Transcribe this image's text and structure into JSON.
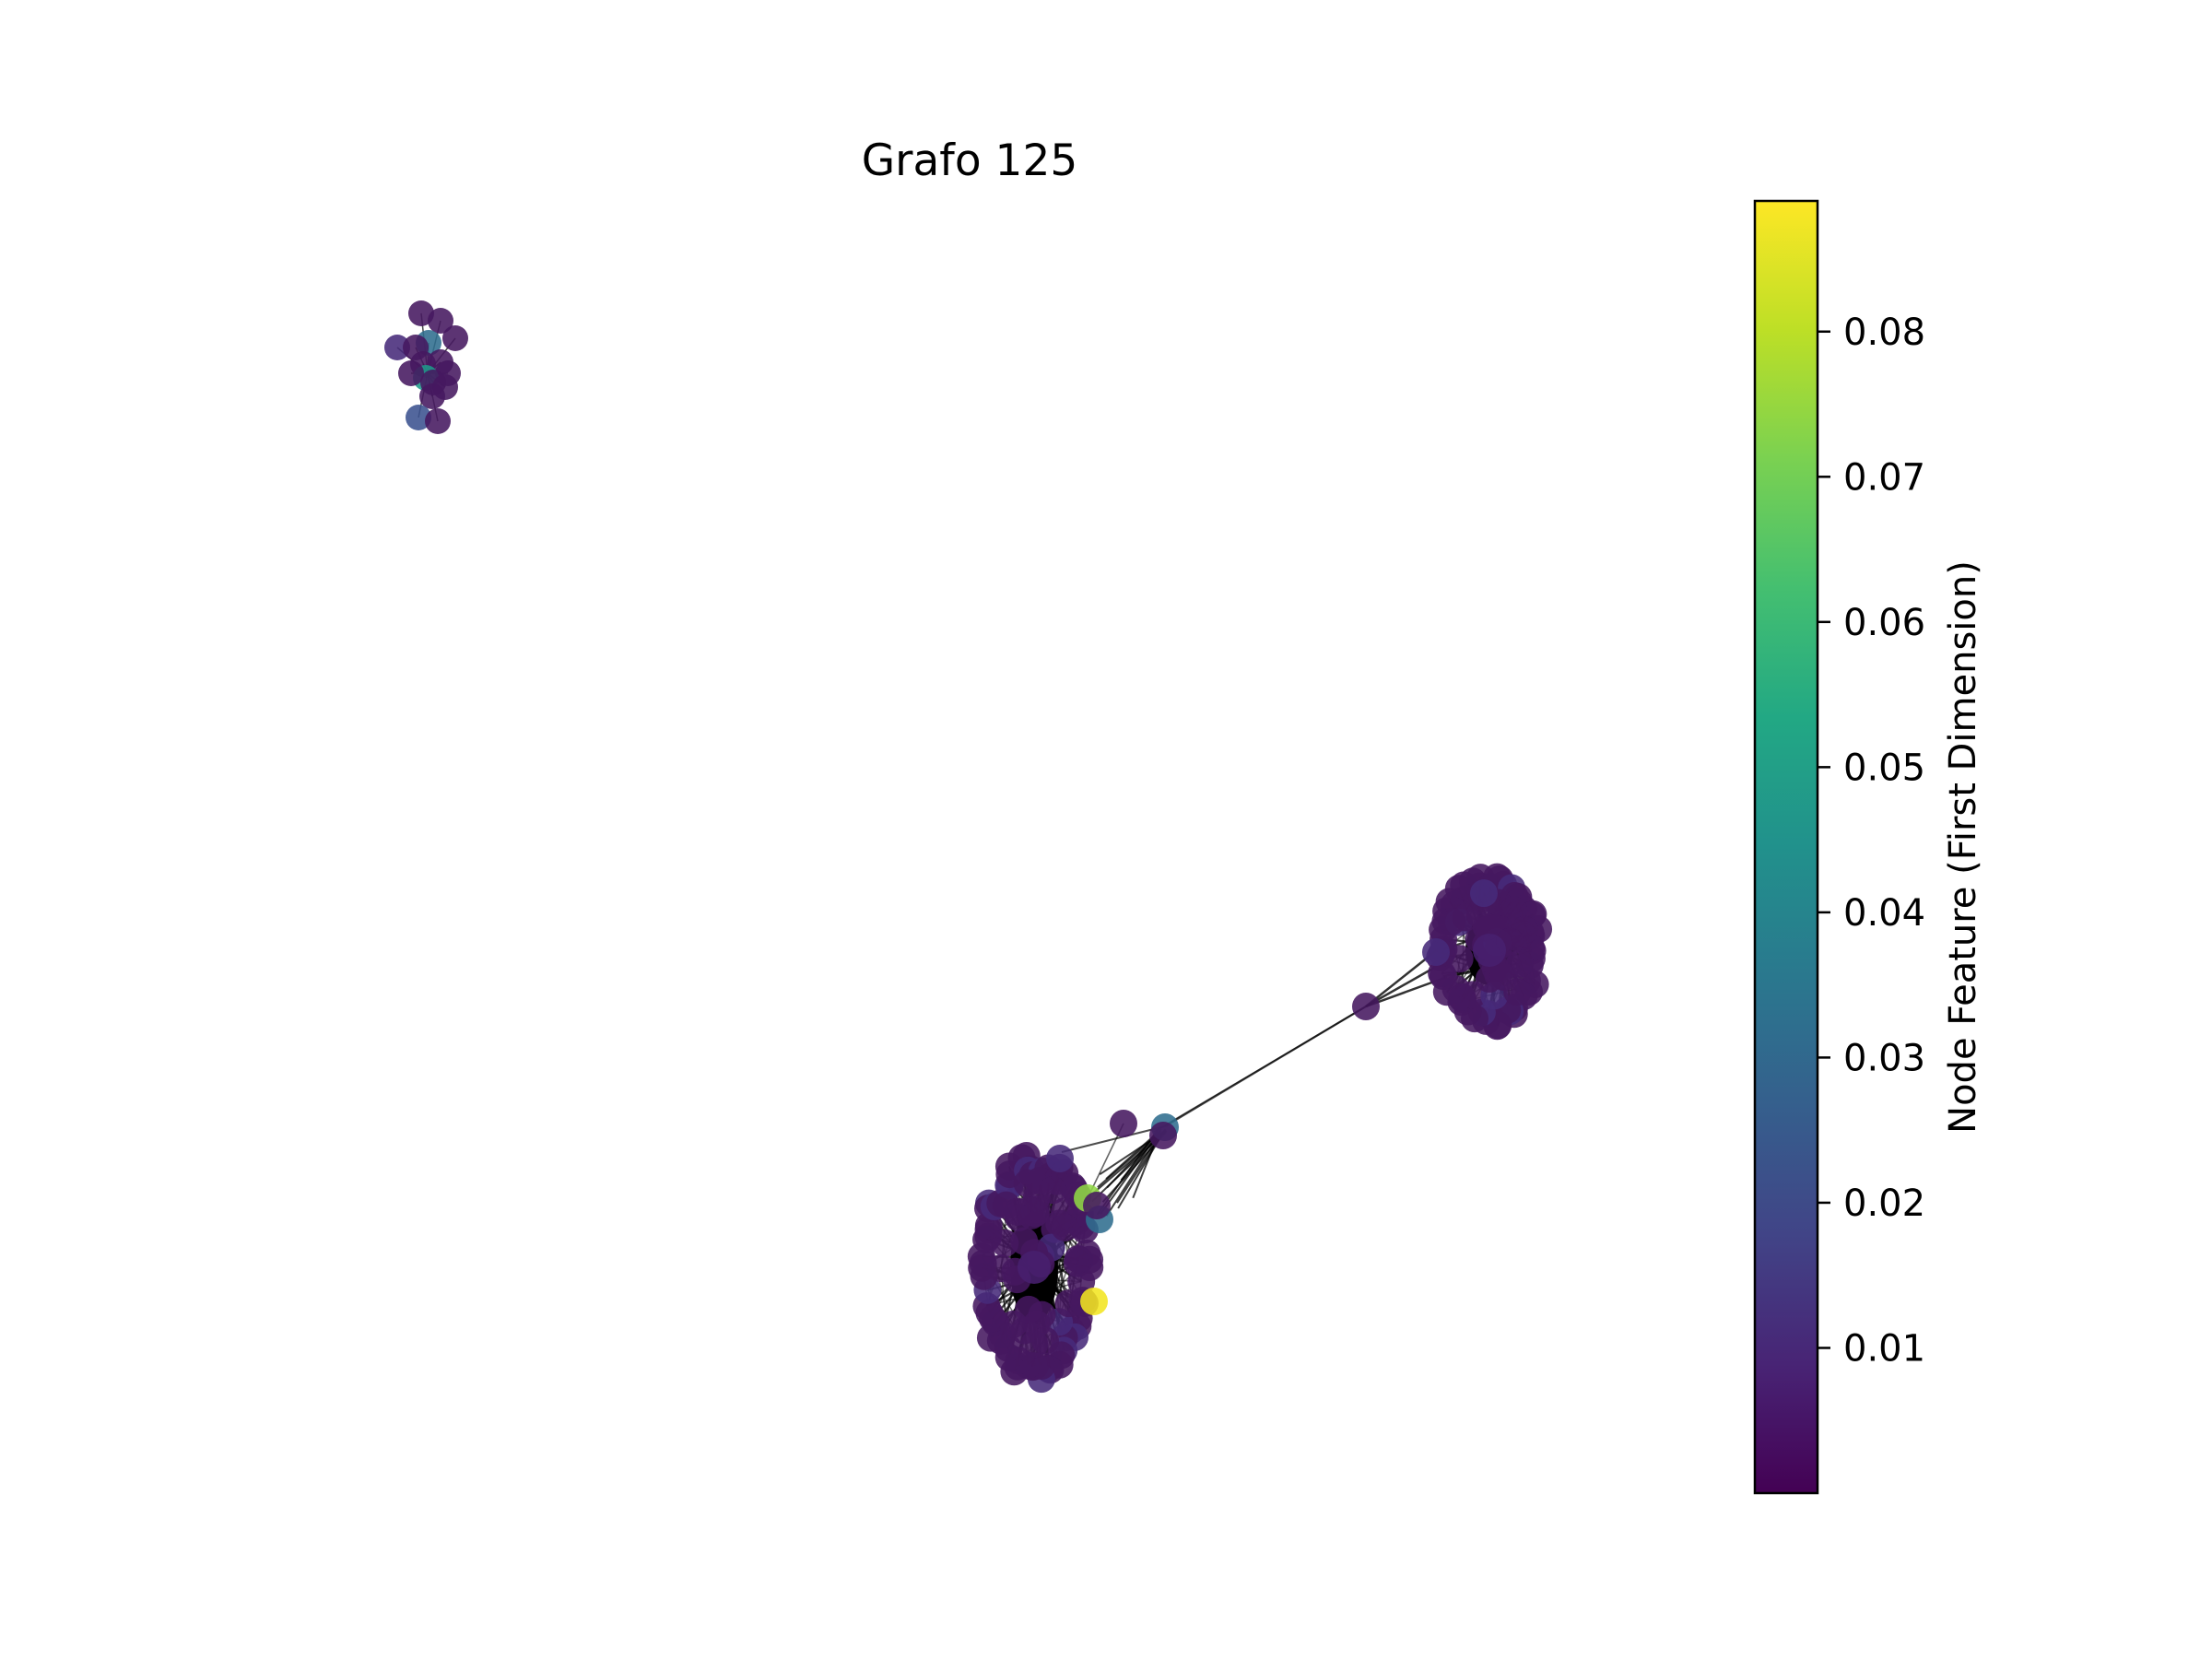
{
  "title": "Grafo 125",
  "colorbar": {
    "label": "Node Feature (First Dimension)",
    "min": 0.0,
    "max": 0.089,
    "ticks": [
      {
        "value": 0.01,
        "label": "0.01"
      },
      {
        "value": 0.02,
        "label": "0.02"
      },
      {
        "value": 0.03,
        "label": "0.03"
      },
      {
        "value": 0.04,
        "label": "0.04"
      },
      {
        "value": 0.05,
        "label": "0.05"
      },
      {
        "value": 0.06,
        "label": "0.06"
      },
      {
        "value": 0.07,
        "label": "0.07"
      },
      {
        "value": 0.08,
        "label": "0.08"
      }
    ],
    "colormap": "viridis"
  },
  "colors": {
    "edge": "#000000",
    "background": "#ffffff"
  }
}
